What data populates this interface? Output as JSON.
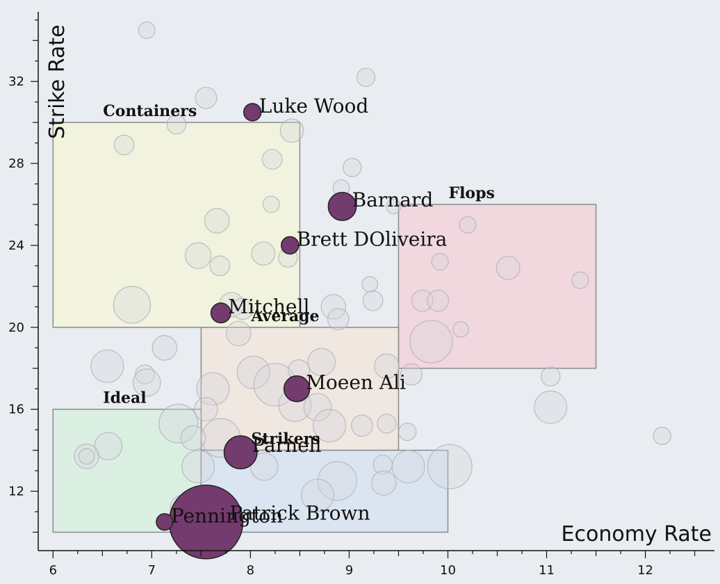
{
  "chart_data": {
    "type": "scatter",
    "xlabel": "Economy Rate",
    "ylabel": "Strike Rate",
    "xlim": [
      5.85,
      12.7
    ],
    "ylim": [
      9.1,
      35.4
    ],
    "x_ticks": [
      6,
      7,
      8,
      9,
      10,
      11,
      12
    ],
    "y_ticks": [
      12,
      16,
      20,
      24,
      28,
      32
    ],
    "grid": false,
    "zones": [
      {
        "label": "Containers",
        "x": [
          6.0,
          8.5
        ],
        "y": [
          20,
          30
        ],
        "color": "#f2f5da"
      },
      {
        "label": "Flops",
        "x": [
          9.5,
          11.5
        ],
        "y": [
          18,
          26
        ],
        "color": "#f2d3da"
      },
      {
        "label": "Average",
        "x": [
          7.5,
          9.5
        ],
        "y": [
          14,
          20
        ],
        "color": "#f0e6dd"
      },
      {
        "label": "Ideal",
        "x": [
          6.0,
          7.5
        ],
        "y": [
          10,
          16
        ],
        "color": "#d8f0e0"
      },
      {
        "label": "Strikers",
        "x": [
          7.5,
          10.0
        ],
        "y": [
          10,
          14
        ],
        "color": "#d8e4f2"
      }
    ],
    "highlighted": [
      {
        "name": "Luke Wood",
        "economy": 8.02,
        "strike_rate": 30.5,
        "size": 1.0
      },
      {
        "name": "Barnard",
        "economy": 8.93,
        "strike_rate": 25.9,
        "size": 2.6
      },
      {
        "name": "Brett DOliveira",
        "economy": 8.4,
        "strike_rate": 24.0,
        "size": 1.0
      },
      {
        "name": "Mitchell",
        "economy": 7.7,
        "strike_rate": 20.7,
        "size": 1.3
      },
      {
        "name": "Moeen Ali",
        "economy": 8.47,
        "strike_rate": 17.0,
        "size": 2.2
      },
      {
        "name": "Parnell",
        "economy": 7.9,
        "strike_rate": 13.9,
        "size": 3.6
      },
      {
        "name": "Patrick Brown",
        "economy": 7.55,
        "strike_rate": 10.5,
        "size": 18.0
      },
      {
        "name": "Pennington",
        "economy": 7.13,
        "strike_rate": 10.5,
        "size": 0.9
      }
    ],
    "others": [
      {
        "x": 6.95,
        "y": 34.5,
        "s": 0.9
      },
      {
        "x": 7.55,
        "y": 31.2,
        "s": 1.5
      },
      {
        "x": 9.17,
        "y": 32.2,
        "s": 1.1
      },
      {
        "x": 7.25,
        "y": 29.9,
        "s": 1.2
      },
      {
        "x": 6.72,
        "y": 28.9,
        "s": 1.3
      },
      {
        "x": 8.42,
        "y": 29.6,
        "s": 1.8
      },
      {
        "x": 8.22,
        "y": 28.2,
        "s": 1.3
      },
      {
        "x": 9.03,
        "y": 27.8,
        "s": 1.1
      },
      {
        "x": 8.92,
        "y": 26.8,
        "s": 0.9
      },
      {
        "x": 8.21,
        "y": 26.0,
        "s": 0.9
      },
      {
        "x": 9.45,
        "y": 25.9,
        "s": 0.7
      },
      {
        "x": 7.66,
        "y": 25.2,
        "s": 2.0
      },
      {
        "x": 10.2,
        "y": 25.0,
        "s": 0.9
      },
      {
        "x": 7.47,
        "y": 23.5,
        "s": 2.2
      },
      {
        "x": 7.69,
        "y": 23.0,
        "s": 1.3
      },
      {
        "x": 8.13,
        "y": 23.6,
        "s": 1.8
      },
      {
        "x": 8.38,
        "y": 23.4,
        "s": 1.2
      },
      {
        "x": 9.92,
        "y": 23.2,
        "s": 0.9
      },
      {
        "x": 10.61,
        "y": 22.9,
        "s": 1.8
      },
      {
        "x": 11.34,
        "y": 22.3,
        "s": 0.9
      },
      {
        "x": 9.21,
        "y": 22.1,
        "s": 0.8
      },
      {
        "x": 6.8,
        "y": 21.1,
        "s": 4.5
      },
      {
        "x": 7.81,
        "y": 21.1,
        "s": 2.0
      },
      {
        "x": 7.92,
        "y": 20.9,
        "s": 1.5
      },
      {
        "x": 8.84,
        "y": 21.0,
        "s": 2.0
      },
      {
        "x": 8.89,
        "y": 20.4,
        "s": 1.5
      },
      {
        "x": 9.24,
        "y": 21.3,
        "s": 1.3
      },
      {
        "x": 9.74,
        "y": 21.3,
        "s": 1.5
      },
      {
        "x": 9.9,
        "y": 21.3,
        "s": 1.5
      },
      {
        "x": 10.13,
        "y": 19.9,
        "s": 0.8
      },
      {
        "x": 9.83,
        "y": 19.3,
        "s": 6.0
      },
      {
        "x": 7.88,
        "y": 19.7,
        "s": 2.0
      },
      {
        "x": 7.13,
        "y": 19.0,
        "s": 2.0
      },
      {
        "x": 6.55,
        "y": 18.1,
        "s": 3.5
      },
      {
        "x": 6.93,
        "y": 17.7,
        "s": 1.2
      },
      {
        "x": 6.95,
        "y": 17.3,
        "s": 2.5
      },
      {
        "x": 7.62,
        "y": 17.0,
        "s": 3.5
      },
      {
        "x": 8.03,
        "y": 17.8,
        "s": 3.5
      },
      {
        "x": 8.25,
        "y": 17.2,
        "s": 6.0
      },
      {
        "x": 8.49,
        "y": 17.9,
        "s": 1.5
      },
      {
        "x": 8.72,
        "y": 18.3,
        "s": 2.5
      },
      {
        "x": 9.38,
        "y": 18.1,
        "s": 2.0
      },
      {
        "x": 9.63,
        "y": 17.7,
        "s": 1.5
      },
      {
        "x": 11.04,
        "y": 17.6,
        "s": 1.2
      },
      {
        "x": 11.04,
        "y": 16.1,
        "s": 3.5
      },
      {
        "x": 8.45,
        "y": 16.2,
        "s": 3.5
      },
      {
        "x": 8.68,
        "y": 16.1,
        "s": 2.5
      },
      {
        "x": 7.55,
        "y": 16.0,
        "s": 1.8
      },
      {
        "x": 7.27,
        "y": 15.3,
        "s": 5.0
      },
      {
        "x": 7.7,
        "y": 14.6,
        "s": 5.0
      },
      {
        "x": 8.8,
        "y": 15.2,
        "s": 3.5
      },
      {
        "x": 9.13,
        "y": 15.2,
        "s": 1.5
      },
      {
        "x": 9.38,
        "y": 15.3,
        "s": 1.2
      },
      {
        "x": 9.59,
        "y": 14.9,
        "s": 1.0
      },
      {
        "x": 6.56,
        "y": 14.2,
        "s": 2.5
      },
      {
        "x": 6.34,
        "y": 13.7,
        "s": 2.0
      },
      {
        "x": 6.34,
        "y": 13.7,
        "s": 0.8
      },
      {
        "x": 7.42,
        "y": 14.6,
        "s": 2.0
      },
      {
        "x": 7.47,
        "y": 13.2,
        "s": 3.5
      },
      {
        "x": 8.14,
        "y": 13.2,
        "s": 2.5
      },
      {
        "x": 8.88,
        "y": 12.5,
        "s": 5.0
      },
      {
        "x": 8.68,
        "y": 11.8,
        "s": 3.5
      },
      {
        "x": 9.34,
        "y": 13.3,
        "s": 1.2
      },
      {
        "x": 9.35,
        "y": 12.4,
        "s": 2.0
      },
      {
        "x": 9.6,
        "y": 13.2,
        "s": 3.5
      },
      {
        "x": 10.02,
        "y": 13.2,
        "s": 6.5
      },
      {
        "x": 12.17,
        "y": 14.7,
        "s": 1.0
      },
      {
        "x": 7.31,
        "y": 11.2,
        "s": 2.0
      }
    ]
  }
}
